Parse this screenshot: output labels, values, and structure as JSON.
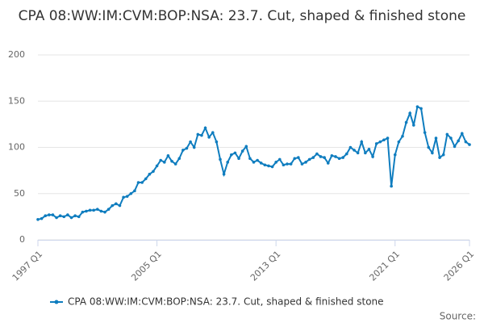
{
  "chart_data": {
    "type": "line",
    "title": "CPA 08:WW:IM:CVM:BOP:NSA: 23.7. Cut, shaped & finished stone",
    "source": "Source:",
    "categories": [
      "1997 Q1",
      null,
      null,
      null,
      null,
      null,
      null,
      null,
      null,
      null,
      null,
      null,
      null,
      null,
      null,
      null,
      null,
      null,
      null,
      null,
      null,
      null,
      null,
      null,
      null,
      null,
      null,
      null,
      null,
      null,
      null,
      null,
      "2005 Q1",
      null,
      null,
      null,
      null,
      null,
      null,
      null,
      null,
      null,
      null,
      null,
      null,
      null,
      null,
      null,
      null,
      null,
      null,
      null,
      null,
      null,
      null,
      null,
      null,
      null,
      null,
      null,
      null,
      null,
      null,
      null,
      "2013 Q1",
      null,
      null,
      null,
      null,
      null,
      null,
      null,
      null,
      null,
      null,
      null,
      null,
      null,
      null,
      null,
      null,
      null,
      null,
      null,
      null,
      null,
      null,
      null,
      null,
      null,
      null,
      null,
      null,
      null,
      null,
      null,
      "2021 Q1",
      null,
      null,
      null,
      null,
      null,
      null,
      null,
      null,
      null,
      null,
      null,
      null,
      null,
      null,
      null,
      null,
      null,
      null,
      null,
      "2026 Q1"
    ],
    "series": [
      {
        "name": "CPA 08:WW:IM:CVM:BOP:NSA: 23.7. Cut, shaped & finished stone",
        "color": "#0f7dbf",
        "values": [
          22,
          23,
          26,
          27,
          27,
          24,
          26,
          25,
          27,
          24,
          26,
          25,
          30,
          31,
          32,
          32,
          33,
          31,
          30,
          33,
          37,
          39,
          37,
          46,
          47,
          50,
          53,
          62,
          62,
          66,
          71,
          74,
          80,
          86,
          84,
          91,
          85,
          82,
          88,
          97,
          99,
          106,
          100,
          114,
          113,
          121,
          111,
          116,
          106,
          87,
          71,
          84,
          92,
          94,
          88,
          96,
          101,
          88,
          84,
          86,
          83,
          81,
          80,
          79,
          84,
          87,
          81,
          82,
          82,
          88,
          89,
          82,
          84,
          87,
          89,
          93,
          90,
          89,
          83,
          91,
          90,
          88,
          89,
          93,
          100,
          97,
          94,
          106,
          94,
          98,
          90,
          104,
          106,
          108,
          110,
          58,
          92,
          106,
          112,
          127,
          137,
          124,
          144,
          142,
          116,
          100,
          94,
          110,
          89,
          92,
          114,
          110,
          101,
          107,
          115,
          106,
          103
        ]
      }
    ],
    "ylim": [
      0,
      200
    ],
    "yticks": [
      0,
      50,
      100,
      150,
      200
    ],
    "grid": true
  }
}
